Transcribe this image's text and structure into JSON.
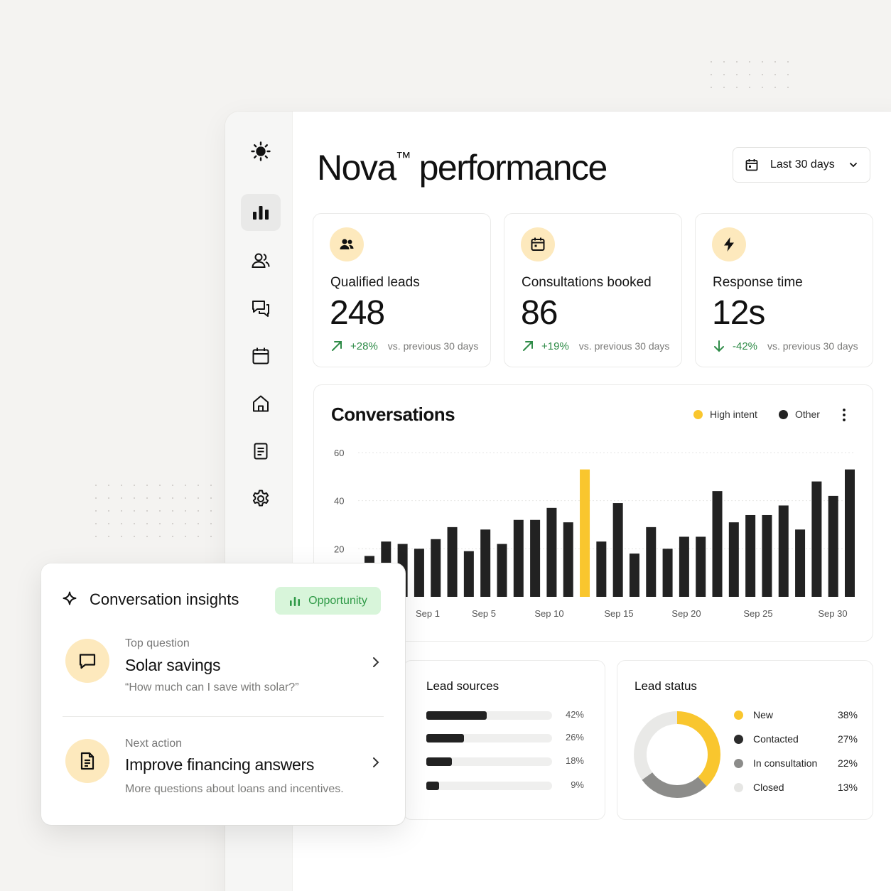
{
  "page": {
    "title": "Nova",
    "title_mark": "™",
    "title_rest": " performance",
    "date_range": "Last 30 days"
  },
  "sidebar": {
    "items": [
      {
        "icon": "sun-logo-icon"
      },
      {
        "icon": "bar-chart-icon",
        "active": true
      },
      {
        "icon": "users-icon"
      },
      {
        "icon": "chat-icon"
      },
      {
        "icon": "calendar-icon"
      },
      {
        "icon": "home-icon"
      },
      {
        "icon": "document-icon"
      },
      {
        "icon": "gear-icon"
      }
    ]
  },
  "kpis": [
    {
      "label": "Qualified leads",
      "value": "248",
      "delta": "+28%",
      "direction": "up",
      "vs": "vs. previous 30 days",
      "icon": "users-icon"
    },
    {
      "label": "Consultations booked",
      "value": "86",
      "delta": "+19%",
      "direction": "up",
      "vs": "vs. previous 30 days",
      "icon": "calendar-icon"
    },
    {
      "label": "Response time",
      "value": "12s",
      "delta": "-42%",
      "direction": "down",
      "vs": "vs. previous 30 days",
      "icon": "lightning-icon"
    }
  ],
  "conversations": {
    "title": "Conversations",
    "legend": [
      {
        "name": "High intent",
        "color": "#f9c62e"
      },
      {
        "name": "Other",
        "color": "#222222"
      }
    ]
  },
  "chart_data": {
    "type": "bar",
    "title": "Conversations",
    "ylim": [
      0,
      60
    ],
    "yticks": [
      "20",
      "40",
      "60"
    ],
    "xtick_labels": [
      "Sep 1",
      "Sep 5",
      "Sep 10",
      "Sep 15",
      "Sep 20",
      "Sep 25",
      "Sep 30"
    ],
    "series": [
      {
        "name": "Other",
        "values": [
          17,
          23,
          22,
          20,
          24,
          29,
          19,
          28,
          22,
          32,
          32,
          37,
          31,
          0,
          23,
          39,
          18,
          29,
          20,
          25,
          25,
          44,
          31,
          34,
          34,
          38,
          28,
          48,
          42,
          53
        ]
      },
      {
        "name": "High intent",
        "values": [
          0,
          0,
          0,
          0,
          0,
          0,
          0,
          0,
          0,
          0,
          0,
          0,
          0,
          53,
          0,
          0,
          0,
          0,
          0,
          0,
          0,
          0,
          0,
          0,
          0,
          0,
          0,
          0,
          0,
          0
        ]
      }
    ]
  },
  "lead_sources": {
    "title": "Lead sources",
    "rows": [
      {
        "pct": "42%",
        "value": 0.42
      },
      {
        "pct": "26%",
        "value": 0.26
      },
      {
        "pct": "18%",
        "value": 0.18
      },
      {
        "pct": "9%",
        "value": 0.09
      }
    ]
  },
  "lead_status": {
    "title": "Lead status",
    "rows": [
      {
        "label": "New",
        "pct": "38%",
        "value": 38,
        "color": "#f9c62e"
      },
      {
        "label": "Contacted",
        "pct": "27%",
        "value": 27,
        "color": "#2b2b2b"
      },
      {
        "label": "In consultation",
        "pct": "22%",
        "value": 22,
        "color": "#8c8c8a"
      },
      {
        "label": "Closed",
        "pct": "13%",
        "value": 13,
        "color": "#e6e6e4"
      }
    ],
    "donut_segments": [
      {
        "value": 38,
        "color": "#f9c62e"
      },
      {
        "value": 27,
        "color": "#8c8c8a"
      },
      {
        "value": 35,
        "color": "#e9e9e7"
      }
    ]
  },
  "insights": {
    "title": "Conversation insights",
    "badge": "Opportunity",
    "items": [
      {
        "kicker": "Top question",
        "heading": "Solar savings",
        "detail": "“How much can I save with solar?”"
      },
      {
        "kicker": "Next action",
        "heading": "Improve financing answers",
        "detail": "More questions about loans and incentives."
      }
    ]
  }
}
